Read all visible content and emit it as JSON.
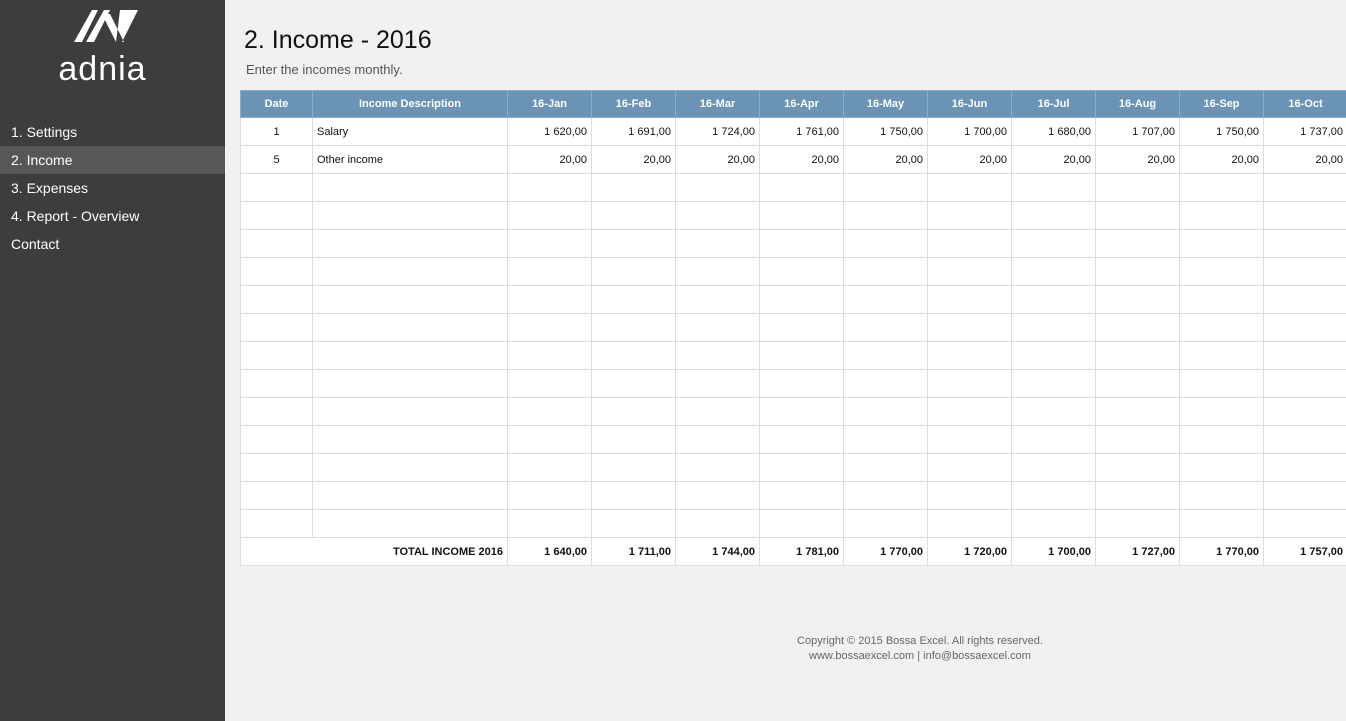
{
  "sidebar": {
    "logo_text": "adnia",
    "nav": [
      "1. Settings",
      "2. Income",
      "3. Expenses",
      "4. Report - Overview",
      "Contact"
    ],
    "active": 1
  },
  "header": {
    "title": "2. Income - 2016",
    "subtitle": "Enter the incomes monthly."
  },
  "table": {
    "columns": [
      "Date",
      "Income Description",
      "16-Jan",
      "16-Feb",
      "16-Mar",
      "16-Apr",
      "16-May",
      "16-Jun",
      "16-Jul",
      "16-Aug",
      "16-Sep",
      "16-Oct"
    ],
    "rows": [
      [
        "1",
        "Salary",
        "1 620,00",
        "1 691,00",
        "1 724,00",
        "1 761,00",
        "1 750,00",
        "1 700,00",
        "1 680,00",
        "1 707,00",
        "1 750,00",
        "1 737,00"
      ],
      [
        "5",
        "Other income",
        "20,00",
        "20,00",
        "20,00",
        "20,00",
        "20,00",
        "20,00",
        "20,00",
        "20,00",
        "20,00",
        "20,00"
      ]
    ],
    "total": {
      "label": "TOTAL INCOME 2016",
      "values": [
        "1 640,00",
        "1 711,00",
        "1 744,00",
        "1 781,00",
        "1 770,00",
        "1 720,00",
        "1 700,00",
        "1 727,00",
        "1 770,00",
        "1 757,00"
      ]
    }
  },
  "footer": {
    "lines": [
      "Copyright © 2015 Bossa Excel. All rights reserved.",
      "www.bossaexcel.com | info@bossaexcel.com"
    ]
  }
}
